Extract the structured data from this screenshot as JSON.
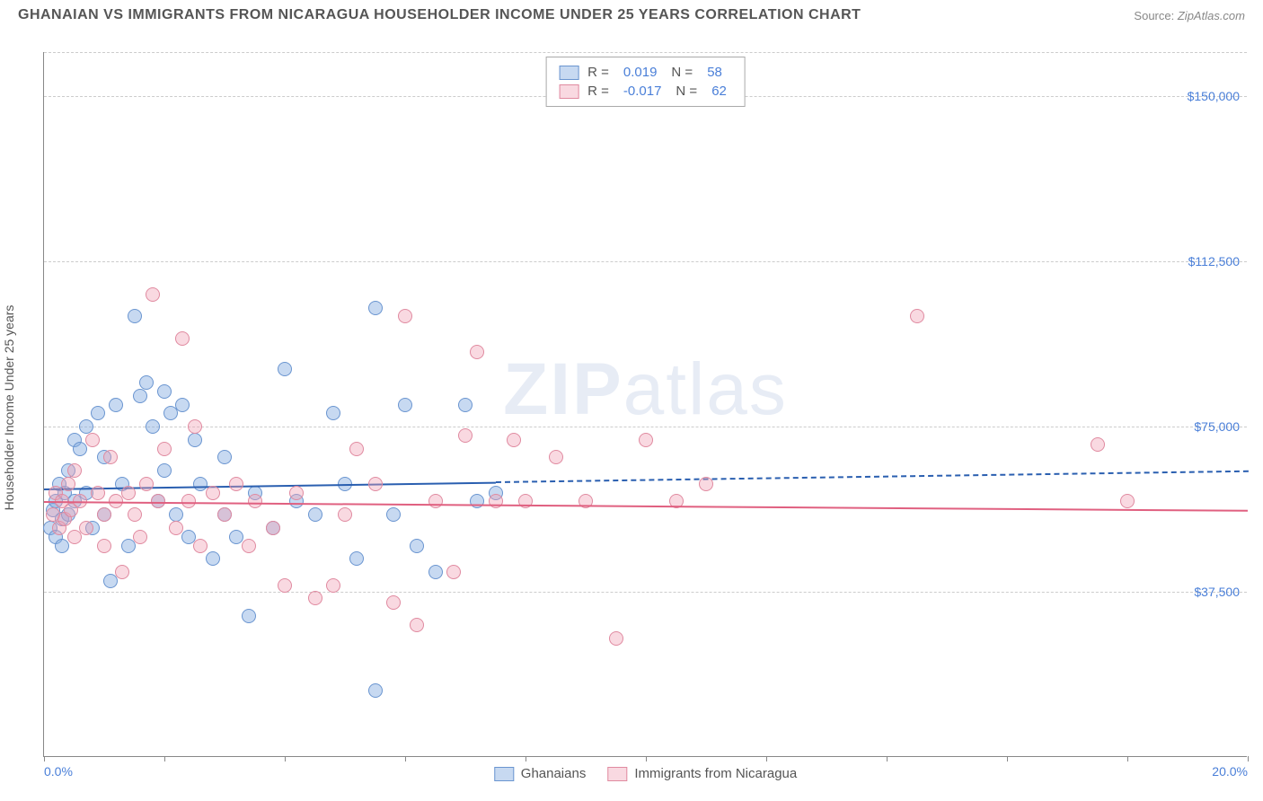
{
  "title": "GHANAIAN VS IMMIGRANTS FROM NICARAGUA HOUSEHOLDER INCOME UNDER 25 YEARS CORRELATION CHART",
  "source_label": "Source:",
  "source_value": "ZipAtlas.com",
  "watermark": "ZIPatlas",
  "chart": {
    "type": "scatter",
    "ylabel": "Householder Income Under 25 years",
    "xlim": [
      0,
      20
    ],
    "ylim": [
      0,
      160000
    ],
    "x_ticks": [
      0,
      2,
      4,
      6,
      8,
      10,
      12,
      14,
      16,
      18,
      20
    ],
    "x_tick_labels": {
      "0": "0.0%",
      "20": "20.0%"
    },
    "y_gridlines": [
      37500,
      75000,
      112500,
      150000
    ],
    "y_tick_labels": [
      "$37,500",
      "$75,000",
      "$112,500",
      "$150,000"
    ],
    "grid_color": "#cccccc",
    "axis_color": "#888888",
    "background_color": "#ffffff",
    "tick_label_color": "#4a7fd8",
    "series": [
      {
        "name": "Ghanaians",
        "color_fill": "rgba(130, 170, 225, 0.45)",
        "color_stroke": "#6a95d0",
        "trend_color": "#2a5fb0",
        "R": "0.019",
        "N": "58",
        "trend": {
          "x1": 0,
          "y1": 61000,
          "x2": 20,
          "y2": 65000,
          "solid_until_x": 7.5
        },
        "points": [
          [
            0.1,
            52000
          ],
          [
            0.15,
            56000
          ],
          [
            0.2,
            58000
          ],
          [
            0.2,
            50000
          ],
          [
            0.25,
            62000
          ],
          [
            0.3,
            54000
          ],
          [
            0.3,
            48000
          ],
          [
            0.35,
            60000
          ],
          [
            0.4,
            65000
          ],
          [
            0.4,
            55000
          ],
          [
            0.5,
            72000
          ],
          [
            0.5,
            58000
          ],
          [
            0.6,
            70000
          ],
          [
            0.7,
            75000
          ],
          [
            0.7,
            60000
          ],
          [
            0.8,
            52000
          ],
          [
            0.9,
            78000
          ],
          [
            1.0,
            68000
          ],
          [
            1.0,
            55000
          ],
          [
            1.1,
            40000
          ],
          [
            1.2,
            80000
          ],
          [
            1.3,
            62000
          ],
          [
            1.4,
            48000
          ],
          [
            1.5,
            100000
          ],
          [
            1.6,
            82000
          ],
          [
            1.7,
            85000
          ],
          [
            1.8,
            75000
          ],
          [
            1.9,
            58000
          ],
          [
            2.0,
            83000
          ],
          [
            2.0,
            65000
          ],
          [
            2.1,
            78000
          ],
          [
            2.2,
            55000
          ],
          [
            2.3,
            80000
          ],
          [
            2.4,
            50000
          ],
          [
            2.5,
            72000
          ],
          [
            2.6,
            62000
          ],
          [
            2.8,
            45000
          ],
          [
            3.0,
            55000
          ],
          [
            3.0,
            68000
          ],
          [
            3.2,
            50000
          ],
          [
            3.4,
            32000
          ],
          [
            3.5,
            60000
          ],
          [
            3.8,
            52000
          ],
          [
            4.0,
            88000
          ],
          [
            4.2,
            58000
          ],
          [
            4.5,
            55000
          ],
          [
            4.8,
            78000
          ],
          [
            5.0,
            62000
          ],
          [
            5.2,
            45000
          ],
          [
            5.5,
            102000
          ],
          [
            5.5,
            15000
          ],
          [
            5.8,
            55000
          ],
          [
            6.0,
            80000
          ],
          [
            6.2,
            48000
          ],
          [
            6.5,
            42000
          ],
          [
            7.0,
            80000
          ],
          [
            7.2,
            58000
          ],
          [
            7.5,
            60000
          ]
        ]
      },
      {
        "name": "Immigrants from Nicaragua",
        "color_fill": "rgba(240, 160, 180, 0.40)",
        "color_stroke": "#e08aa0",
        "trend_color": "#e06080",
        "R": "-0.017",
        "N": "62",
        "trend": {
          "x1": 0,
          "y1": 58000,
          "x2": 20,
          "y2": 56000,
          "solid_until_x": 20
        },
        "points": [
          [
            0.15,
            55000
          ],
          [
            0.2,
            60000
          ],
          [
            0.25,
            52000
          ],
          [
            0.3,
            58000
          ],
          [
            0.35,
            54000
          ],
          [
            0.4,
            62000
          ],
          [
            0.45,
            56000
          ],
          [
            0.5,
            50000
          ],
          [
            0.5,
            65000
          ],
          [
            0.6,
            58000
          ],
          [
            0.7,
            52000
          ],
          [
            0.8,
            72000
          ],
          [
            0.9,
            60000
          ],
          [
            1.0,
            55000
          ],
          [
            1.0,
            48000
          ],
          [
            1.1,
            68000
          ],
          [
            1.2,
            58000
          ],
          [
            1.3,
            42000
          ],
          [
            1.4,
            60000
          ],
          [
            1.5,
            55000
          ],
          [
            1.6,
            50000
          ],
          [
            1.7,
            62000
          ],
          [
            1.8,
            105000
          ],
          [
            1.9,
            58000
          ],
          [
            2.0,
            70000
          ],
          [
            2.2,
            52000
          ],
          [
            2.3,
            95000
          ],
          [
            2.4,
            58000
          ],
          [
            2.5,
            75000
          ],
          [
            2.6,
            48000
          ],
          [
            2.8,
            60000
          ],
          [
            3.0,
            55000
          ],
          [
            3.2,
            62000
          ],
          [
            3.4,
            48000
          ],
          [
            3.5,
            58000
          ],
          [
            3.8,
            52000
          ],
          [
            4.0,
            39000
          ],
          [
            4.2,
            60000
          ],
          [
            4.5,
            36000
          ],
          [
            4.8,
            39000
          ],
          [
            5.0,
            55000
          ],
          [
            5.2,
            70000
          ],
          [
            5.5,
            62000
          ],
          [
            5.8,
            35000
          ],
          [
            6.0,
            100000
          ],
          [
            6.2,
            30000
          ],
          [
            6.5,
            58000
          ],
          [
            6.8,
            42000
          ],
          [
            7.0,
            73000
          ],
          [
            7.2,
            92000
          ],
          [
            7.5,
            58000
          ],
          [
            7.8,
            72000
          ],
          [
            8.0,
            58000
          ],
          [
            8.5,
            68000
          ],
          [
            9.0,
            58000
          ],
          [
            9.5,
            27000
          ],
          [
            10.0,
            72000
          ],
          [
            10.5,
            58000
          ],
          [
            11.0,
            62000
          ],
          [
            14.5,
            100000
          ],
          [
            17.5,
            71000
          ],
          [
            18.0,
            58000
          ]
        ]
      }
    ],
    "legend_top": {
      "r_label": "R =",
      "n_label": "N ="
    },
    "legend_bottom": [
      {
        "label": "Ghanaians",
        "fill": "rgba(130,170,225,0.45)",
        "stroke": "#6a95d0"
      },
      {
        "label": "Immigrants from Nicaragua",
        "fill": "rgba(240,160,180,0.40)",
        "stroke": "#e08aa0"
      }
    ]
  }
}
